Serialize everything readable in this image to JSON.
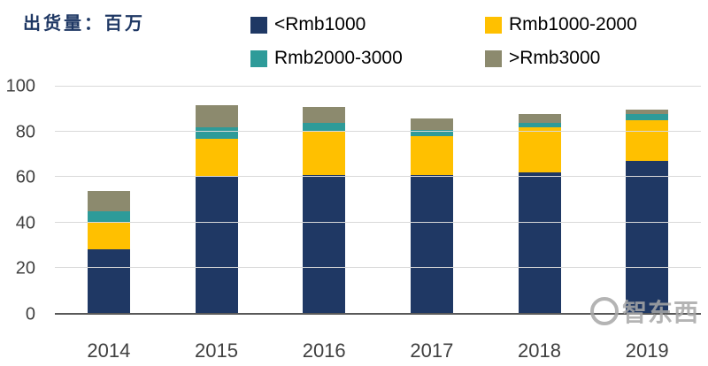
{
  "header": {
    "title": "出货量：百万"
  },
  "watermark": "智东西",
  "chart_data": {
    "type": "bar",
    "stacked": true,
    "title": "出货量：百万",
    "xlabel": "",
    "ylabel": "出货量（百万）",
    "categories": [
      "2014",
      "2015",
      "2016",
      "2017",
      "2018",
      "2019"
    ],
    "series": [
      {
        "name": "<Rmb1000",
        "color": "#1F3864",
        "values": [
          28,
          60,
          61,
          61,
          62,
          67
        ]
      },
      {
        "name": "Rmb1000-2000",
        "color": "#FFC000",
        "values": [
          12,
          17,
          19,
          17,
          20,
          18
        ]
      },
      {
        "name": "Rmb2000-3000",
        "color": "#2E9B99",
        "values": [
          5,
          5,
          4,
          3,
          2,
          3
        ]
      },
      {
        "name": ">Rmb3000",
        "color": "#8C8A6E",
        "values": [
          9,
          10,
          7,
          5,
          4,
          2
        ]
      }
    ],
    "totals": [
      54,
      92,
      91,
      86,
      88,
      90
    ],
    "ylim": [
      0,
      100
    ],
    "yticks": [
      0,
      20,
      40,
      60,
      80,
      100
    ],
    "legend_position": "top",
    "grid": "horizontal"
  }
}
